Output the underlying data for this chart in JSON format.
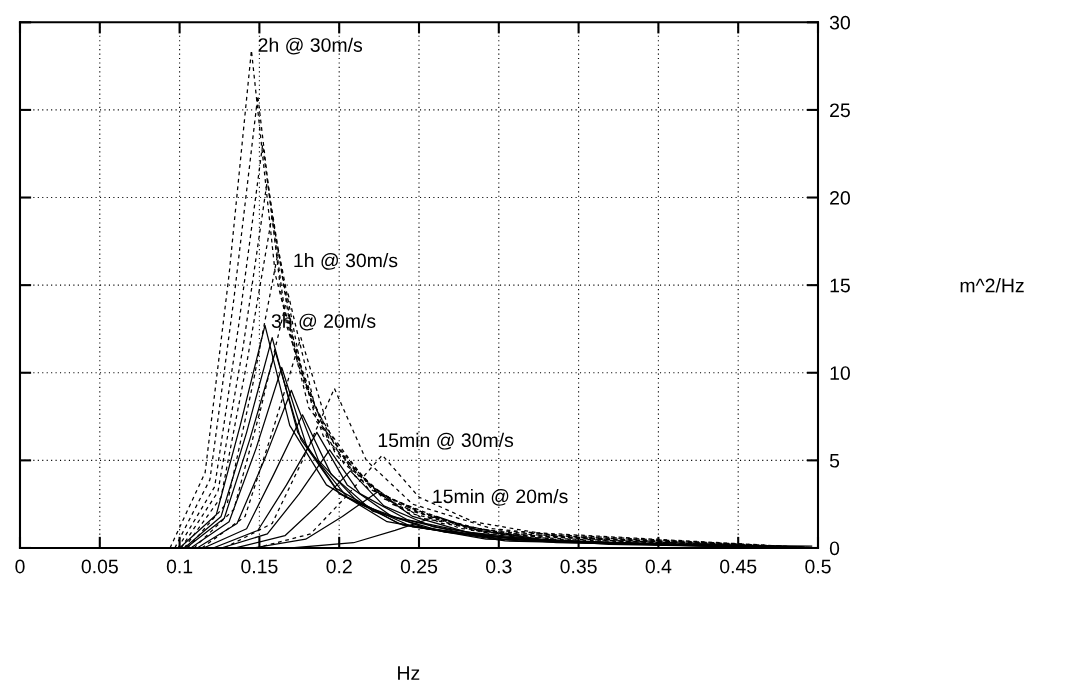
{
  "chart_data": {
    "type": "line",
    "xlim": [
      0,
      0.5
    ],
    "ylim": [
      0,
      30
    ],
    "xticks": [
      0,
      0.05,
      0.1,
      0.15,
      0.2,
      0.25,
      0.3,
      0.35,
      0.4,
      0.45,
      0.5
    ],
    "yticks": [
      0,
      5,
      10,
      15,
      20,
      25,
      30
    ],
    "grid": true,
    "legend": false,
    "marker": "none",
    "annotations": [
      "2h @ 30m/s",
      "1h @ 30m/s",
      "3h @ 20m/s",
      "15min @ 30m/s",
      "15min @ 20m/s",
      "Hz",
      "m^2/Hz"
    ],
    "series": [
      {
        "color": "#000000",
        "line_style": "dashed",
        "x": [
          0.094,
          0.116,
          0.131,
          0.145,
          0.16,
          0.181,
          0.218,
          0.276,
          0.5
        ],
        "values": [
          0,
          4.3,
          15.6,
          28.4,
          15.6,
          8.0,
          3.4,
          1.1,
          0
        ]
      },
      {
        "color": "#000000",
        "line_style": "dashed",
        "x": [
          0.097,
          0.119,
          0.134,
          0.149,
          0.164,
          0.186,
          0.224,
          0.283,
          0.5
        ],
        "values": [
          0,
          3.9,
          14.2,
          25.8,
          14.2,
          7.2,
          3.1,
          1.0,
          0
        ]
      },
      {
        "color": "#000000",
        "line_style": "dashed",
        "x": [
          0.099,
          0.122,
          0.137,
          0.152,
          0.167,
          0.19,
          0.228,
          0.289,
          0.5
        ],
        "values": [
          0,
          3.5,
          12.7,
          23.0,
          12.7,
          6.4,
          2.8,
          0.9,
          0
        ]
      },
      {
        "color": "#000000",
        "line_style": "dashed",
        "x": [
          0.101,
          0.124,
          0.14,
          0.155,
          0.171,
          0.194,
          0.233,
          0.295,
          0.5
        ],
        "values": [
          0,
          3.2,
          11.6,
          21.0,
          11.6,
          5.9,
          2.5,
          0.8,
          0
        ]
      },
      {
        "color": "#000000",
        "line_style": "dashed",
        "x": [
          0.103,
          0.126,
          0.142,
          0.158,
          0.174,
          0.198,
          0.237,
          0.3,
          0.5
        ],
        "values": [
          0,
          2.9,
          10.5,
          19.0,
          10.5,
          5.3,
          2.3,
          0.8,
          0
        ]
      },
      {
        "color": "#000000",
        "line_style": "dashed",
        "x": [
          0.105,
          0.13,
          0.146,
          0.162,
          0.178,
          0.203,
          0.243,
          0.308,
          0.5
        ],
        "values": [
          0,
          2.6,
          9.4,
          17.0,
          9.4,
          4.8,
          2.0,
          0.7,
          0
        ]
      },
      {
        "color": "#000000",
        "line_style": "dashed",
        "x": [
          0.109,
          0.134,
          0.151,
          0.168,
          0.185,
          0.21,
          0.252,
          0.319,
          0.5
        ],
        "values": [
          0,
          2.2,
          8.0,
          14.5,
          8.0,
          4.1,
          1.7,
          0.6,
          0
        ]
      },
      {
        "color": "#000000",
        "line_style": "dashed",
        "x": [
          0.114,
          0.141,
          0.158,
          0.176,
          0.194,
          0.22,
          0.264,
          0.334,
          0.5
        ],
        "values": [
          0,
          1.8,
          6.6,
          12.0,
          6.6,
          3.4,
          1.4,
          0.5,
          0
        ]
      },
      {
        "color": "#000000",
        "line_style": "dashed",
        "x": [
          0.128,
          0.158,
          0.177,
          0.197,
          0.217,
          0.246,
          0.296,
          0.374,
          0.5
        ],
        "values": [
          0,
          1.4,
          5.0,
          9.1,
          5.0,
          2.5,
          1.1,
          0.4,
          0
        ]
      },
      {
        "color": "#000000",
        "line_style": "dashed",
        "x": [
          0.148,
          0.182,
          0.204,
          0.227,
          0.25,
          0.284,
          0.341,
          0.431,
          0.5
        ],
        "values": [
          0,
          0.8,
          2.9,
          5.3,
          2.9,
          1.5,
          0.6,
          0.2,
          0
        ]
      },
      {
        "color": "#000000",
        "line_style": "solid",
        "x": [
          0.1,
          0.123,
          0.138,
          0.1535,
          0.169,
          0.192,
          0.23,
          0.292,
          0.5
        ],
        "values": [
          0,
          1.9,
          7.0,
          12.7,
          7.0,
          3.6,
          1.5,
          0.5,
          0
        ]
      },
      {
        "color": "#000000",
        "line_style": "solid",
        "x": [
          0.103,
          0.126,
          0.142,
          0.158,
          0.174,
          0.198,
          0.237,
          0.3,
          0.5
        ],
        "values": [
          0,
          1.8,
          6.6,
          12.0,
          6.6,
          3.4,
          1.4,
          0.5,
          0
        ]
      },
      {
        "color": "#000000",
        "line_style": "solid",
        "x": [
          0.104,
          0.128,
          0.144,
          0.16,
          0.176,
          0.2,
          0.24,
          0.304,
          0.5
        ],
        "values": [
          0,
          1.7,
          6.2,
          11.2,
          6.2,
          3.1,
          1.3,
          0.4,
          0
        ]
      },
      {
        "color": "#000000",
        "line_style": "solid",
        "x": [
          0.107,
          0.131,
          0.148,
          0.164,
          0.18,
          0.205,
          0.246,
          0.312,
          0.5
        ],
        "values": [
          0,
          1.5,
          5.7,
          10.3,
          5.7,
          2.9,
          1.2,
          0.4,
          0
        ]
      },
      {
        "color": "#000000",
        "line_style": "solid",
        "x": [
          0.111,
          0.136,
          0.153,
          0.17,
          0.187,
          0.213,
          0.255,
          0.323,
          0.5
        ],
        "values": [
          0,
          1.4,
          5.0,
          9.0,
          5.0,
          2.5,
          1.1,
          0.4,
          0
        ]
      },
      {
        "color": "#000000",
        "line_style": "solid",
        "x": [
          0.115,
          0.142,
          0.159,
          0.177,
          0.195,
          0.221,
          0.266,
          0.336,
          0.5
        ],
        "values": [
          0,
          1.1,
          4.2,
          7.6,
          4.2,
          2.1,
          0.9,
          0.3,
          0
        ]
      },
      {
        "color": "#000000",
        "line_style": "solid",
        "x": [
          0.121,
          0.149,
          0.167,
          0.186,
          0.205,
          0.233,
          0.279,
          0.353,
          0.5
        ],
        "values": [
          0,
          1.0,
          3.6,
          6.6,
          3.6,
          1.8,
          0.8,
          0.3,
          0
        ]
      },
      {
        "color": "#000000",
        "line_style": "solid",
        "x": [
          0.126,
          0.155,
          0.175,
          0.194,
          0.213,
          0.243,
          0.291,
          0.369,
          0.5
        ],
        "values": [
          0,
          0.8,
          3.1,
          5.6,
          3.1,
          1.6,
          0.7,
          0.2,
          0
        ]
      },
      {
        "color": "#000000",
        "line_style": "solid",
        "x": [
          0.135,
          0.166,
          0.186,
          0.207,
          0.228,
          0.259,
          0.311,
          0.393,
          0.5
        ],
        "values": [
          0,
          0.7,
          2.4,
          4.4,
          2.4,
          1.2,
          0.5,
          0.2,
          0
        ]
      },
      {
        "color": "#000000",
        "line_style": "solid",
        "x": [
          0.146,
          0.179,
          0.202,
          0.224,
          0.246,
          0.28,
          0.336,
          0.426,
          0.5
        ],
        "values": [
          0,
          0.5,
          1.8,
          3.2,
          1.8,
          0.9,
          0.4,
          0.1,
          0
        ]
      },
      {
        "color": "#000000",
        "line_style": "solid",
        "x": [
          0.17,
          0.209,
          0.235,
          0.261,
          0.287,
          0.326,
          0.392,
          0.496
        ],
        "values": [
          0,
          0.3,
          1.0,
          1.8,
          1.0,
          0.5,
          0.2,
          0.1
        ]
      }
    ]
  }
}
